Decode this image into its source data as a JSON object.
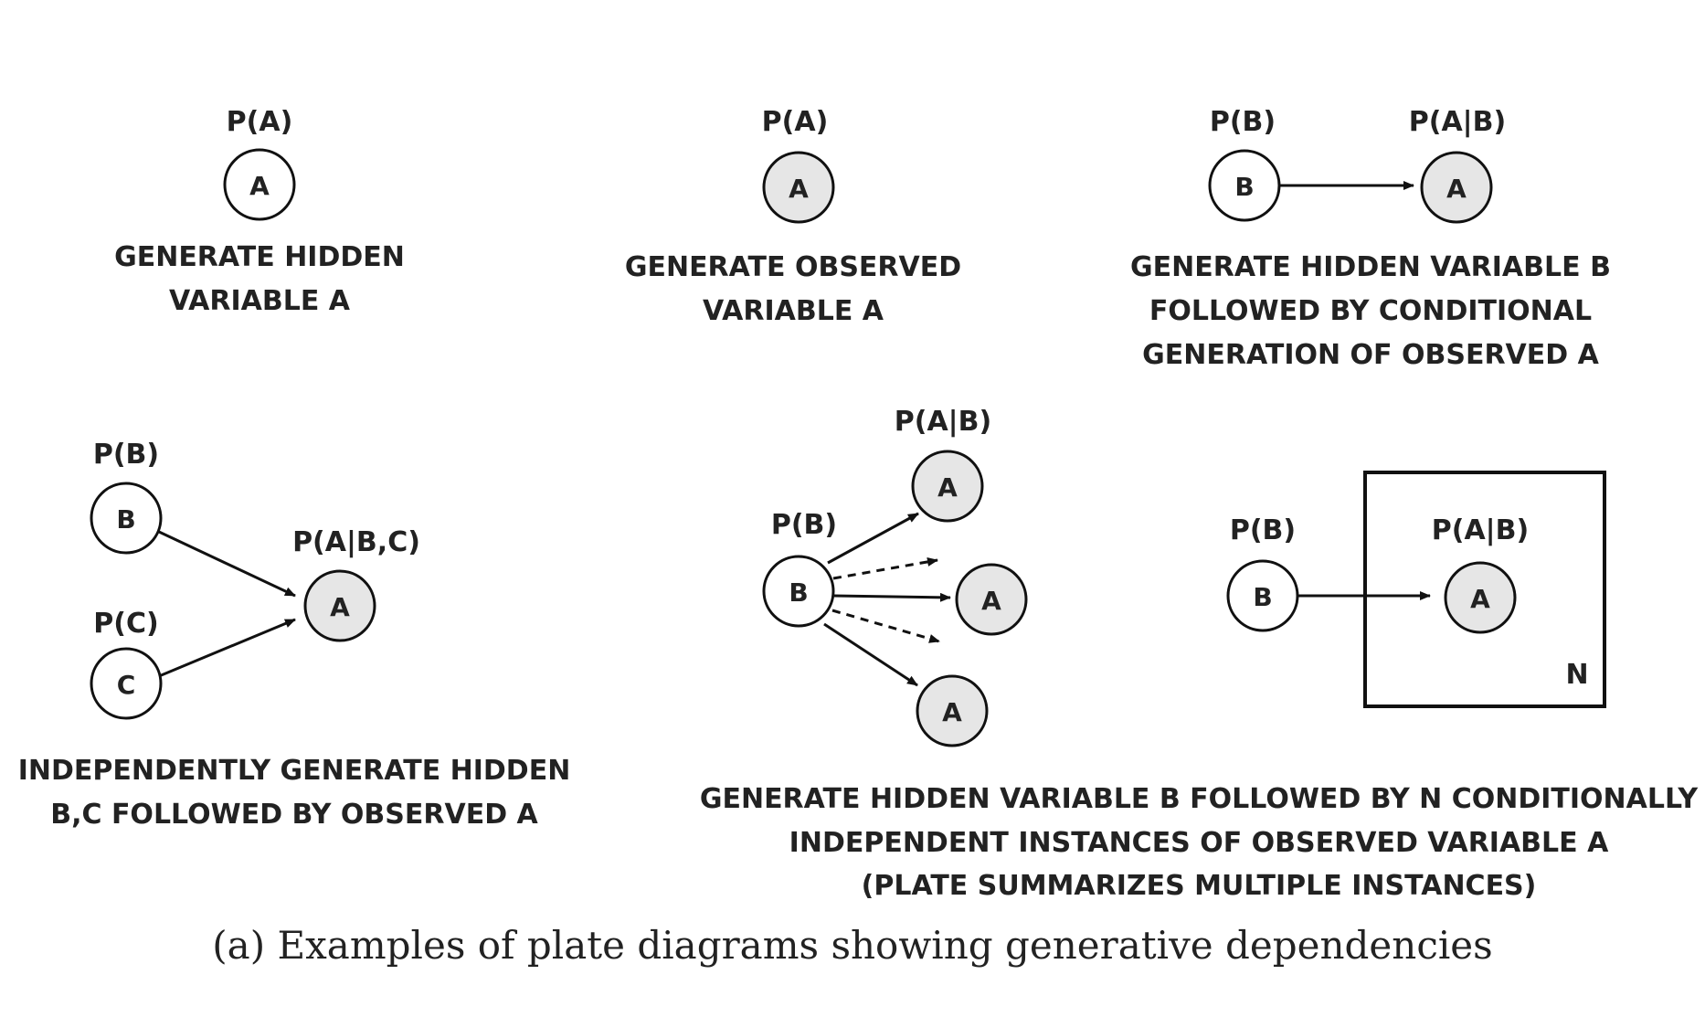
{
  "panels": {
    "p1": {
      "label_pa": "P(A)",
      "node_a": "A",
      "desc": [
        "GENERATE HIDDEN",
        "VARIABLE A"
      ]
    },
    "p2": {
      "label_pa": "P(A)",
      "node_a": "A",
      "desc": [
        "GENERATE OBSERVED",
        "VARIABLE A"
      ]
    },
    "p3": {
      "label_pb": "P(B)",
      "label_pab": "P(A|B)",
      "node_b": "B",
      "node_a": "A",
      "desc": [
        "GENERATE HIDDEN VARIABLE B",
        "FOLLOWED BY CONDITIONAL",
        "GENERATION OF OBSERVED A"
      ]
    },
    "p4": {
      "label_pb": "P(B)",
      "label_pc": "P(C)",
      "label_pabc": "P(A|B,C)",
      "node_b": "B",
      "node_c": "C",
      "node_a": "A",
      "desc": [
        "INDEPENDENTLY GENERATE HIDDEN",
        "B,C FOLLOWED BY OBSERVED A"
      ]
    },
    "p5": {
      "label_pb": "P(B)",
      "label_pab": "P(A|B)",
      "node_b": "B",
      "node_a_top": "A",
      "node_a_mid": "A",
      "node_a_bot": "A"
    },
    "p6": {
      "label_pb": "P(B)",
      "label_pab": "P(A|B)",
      "node_b": "B",
      "node_a": "A",
      "plate_label": "N"
    },
    "shared_desc": [
      "GENERATE HIDDEN VARIABLE B FOLLOWED BY N CONDITIONALLY",
      "INDEPENDENT INSTANCES OF OBSERVED VARIABLE A",
      "(PLATE SUMMARIZES MULTIPLE INSTANCES)"
    ]
  },
  "caption": "(a) Examples of plate diagrams showing generative dependencies",
  "colors": {
    "stroke": "#111111",
    "observed_fill": "#e6e6e6",
    "hidden_fill": "#ffffff",
    "text": "#222222"
  }
}
